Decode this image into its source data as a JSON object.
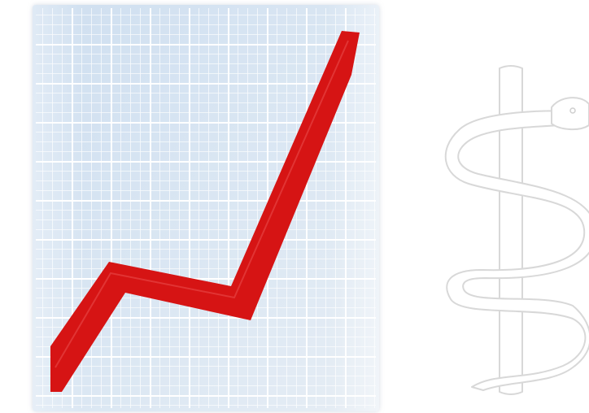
{
  "icons": {
    "left": "chart-increasing-icon",
    "right": "staff-of-asclepius-icon"
  },
  "colors": {
    "background": "#ffffff",
    "grid_paper": "#d6e3f1",
    "grid_lines": "#ffffff",
    "trend_line": "#d61414",
    "staff_outline": "#d8d8d8"
  }
}
